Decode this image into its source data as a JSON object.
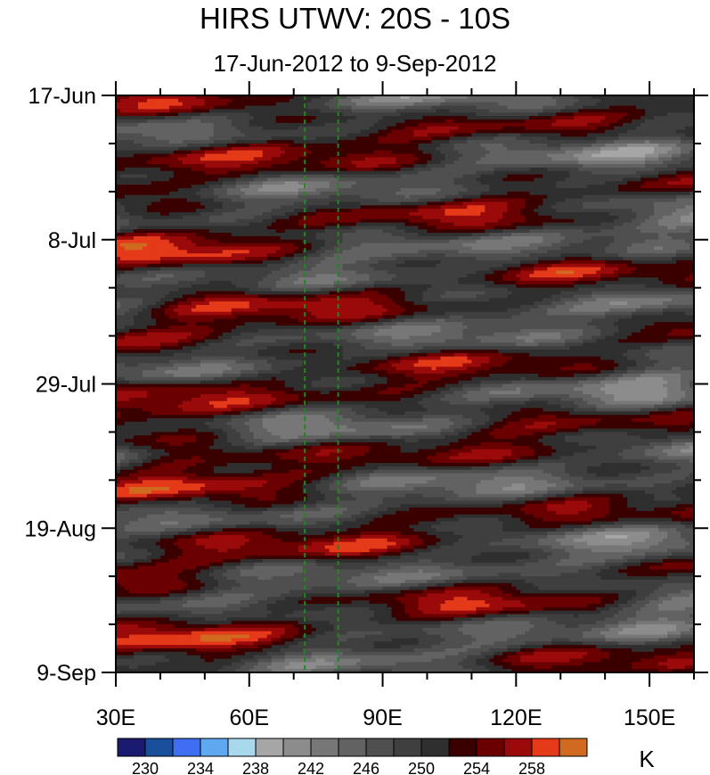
{
  "chart_data": {
    "type": "heatmap",
    "title": "HIRS UTWV: 20S - 10S",
    "subtitle": "17-Jun-2012 to 9-Sep-2012",
    "x_ticks": [
      {
        "value": 30,
        "label": "30E"
      },
      {
        "value": 60,
        "label": "60E"
      },
      {
        "value": 90,
        "label": "90E"
      },
      {
        "value": 120,
        "label": "120E"
      },
      {
        "value": 150,
        "label": "150E"
      }
    ],
    "x_range": [
      30,
      160
    ],
    "y_ticks": [
      {
        "value": 0,
        "label": "17-Jun"
      },
      {
        "value": 21,
        "label": "8-Jul"
      },
      {
        "value": 42,
        "label": "29-Jul"
      },
      {
        "value": 63,
        "label": "19-Aug"
      },
      {
        "value": 84,
        "label": "9-Sep"
      }
    ],
    "y_range_days": [
      0,
      84
    ],
    "reference_lines_lon": [
      72.5,
      80
    ],
    "colorbar": {
      "unit": "K",
      "levels": [
        228,
        230,
        232,
        234,
        236,
        238,
        240,
        242,
        244,
        246,
        248,
        250,
        252,
        254,
        256,
        258,
        260
      ],
      "labels": [
        "230",
        "234",
        "238",
        "242",
        "246",
        "250",
        "254",
        "258"
      ],
      "colors": [
        "#1a1a6e",
        "#1a4f9c",
        "#3f6ef5",
        "#5fa9f0",
        "#a8d7ee",
        "#a6a6a6",
        "#8c8c8c",
        "#777777",
        "#626262",
        "#4f4f4f",
        "#3f3f3f",
        "#2f2f2f",
        "#3a0000",
        "#6a0000",
        "#9a0a0a",
        "#e43a1a",
        "#d06a20"
      ]
    }
  }
}
